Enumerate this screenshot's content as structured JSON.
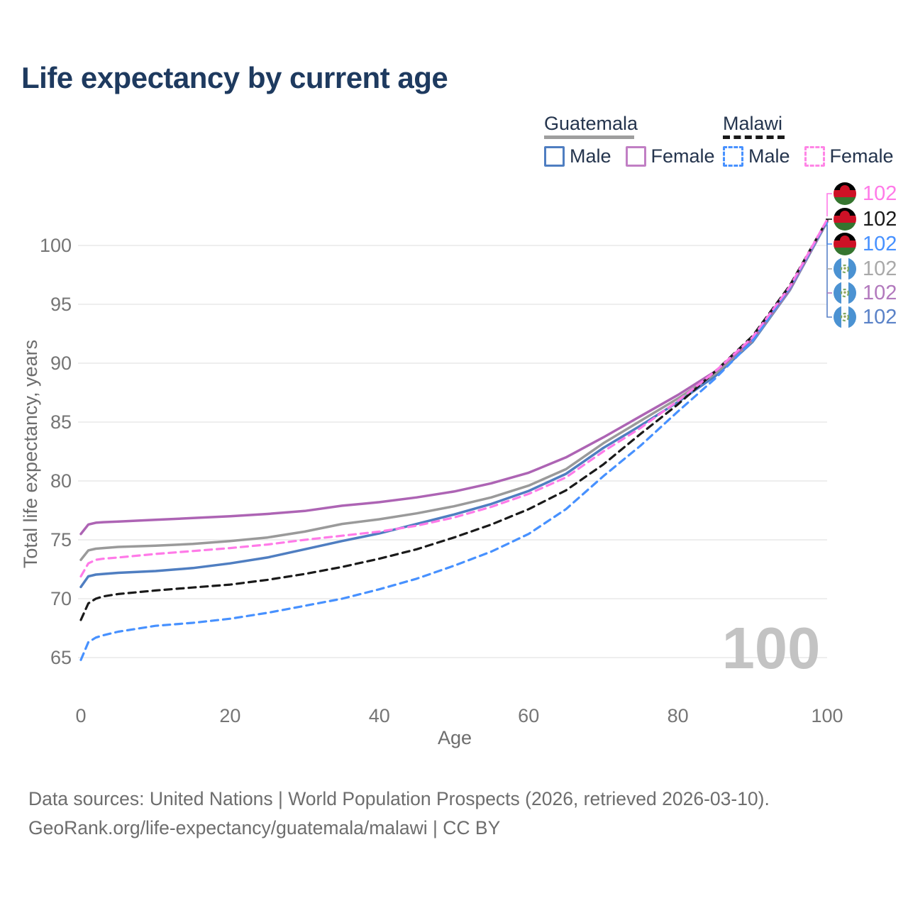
{
  "header": {
    "title": "Life expectancy by current age"
  },
  "legend": {
    "groups": [
      {
        "country": "Guatemala",
        "underline_color": "#9e9e9e",
        "underline_dashed": false,
        "items": [
          {
            "label": "Male",
            "color": "#4f7ec1",
            "dashed": false
          },
          {
            "label": "Female",
            "color": "#c17fc4",
            "dashed": false
          }
        ]
      },
      {
        "country": "Malawi",
        "underline_color": "#1a1a1a",
        "underline_dashed": true,
        "items": [
          {
            "label": "Male",
            "color": "#4791ff",
            "dashed": true
          },
          {
            "label": "Female",
            "color": "#ff85e6",
            "dashed": true
          }
        ]
      }
    ]
  },
  "chart_data": {
    "type": "line",
    "title": "Life expectancy by current age",
    "xlabel": "Age",
    "ylabel": "Total life expectancy, years",
    "xlim": [
      0,
      100
    ],
    "ylim": [
      63,
      103
    ],
    "xticks": [
      0,
      20,
      40,
      60,
      80,
      100
    ],
    "yticks": [
      65,
      70,
      75,
      80,
      85,
      90,
      95,
      100
    ],
    "grid": "horizontal",
    "legend_position": "top-right",
    "ages": [
      0,
      1,
      2,
      3,
      5,
      10,
      15,
      20,
      25,
      30,
      35,
      40,
      45,
      50,
      55,
      60,
      65,
      70,
      75,
      80,
      85,
      90,
      95,
      100
    ],
    "series": [
      {
        "id": "guatemala-male",
        "name": "Guatemala Male",
        "country": "Guatemala",
        "sex": "Male",
        "style": "solid",
        "color": "#4f7ec1",
        "values": [
          71.0,
          71.9,
          72.05,
          72.1,
          72.2,
          72.35,
          72.6,
          73.0,
          73.5,
          74.2,
          74.9,
          75.55,
          76.35,
          77.15,
          78.05,
          79.15,
          80.6,
          82.8,
          84.7,
          86.7,
          88.9,
          91.8,
          96.2,
          102.0
        ]
      },
      {
        "id": "guatemala-both",
        "name": "Guatemala Both sexes",
        "country": "Guatemala",
        "sex": "All",
        "style": "solid",
        "color": "#9a9a9a",
        "values": [
          73.3,
          74.1,
          74.25,
          74.3,
          74.4,
          74.5,
          74.65,
          74.9,
          75.2,
          75.7,
          76.35,
          76.75,
          77.25,
          77.85,
          78.6,
          79.6,
          81.0,
          83.2,
          85.1,
          87.0,
          89.1,
          91.9,
          96.25,
          102.05
        ]
      },
      {
        "id": "guatemala-female",
        "name": "Guatemala Female",
        "country": "Guatemala",
        "sex": "Female",
        "style": "solid",
        "color": "#ad64b4",
        "values": [
          75.5,
          76.3,
          76.45,
          76.5,
          76.55,
          76.7,
          76.85,
          77.0,
          77.2,
          77.45,
          77.9,
          78.2,
          78.6,
          79.1,
          79.8,
          80.7,
          82.0,
          83.7,
          85.5,
          87.3,
          89.3,
          92.0,
          96.3,
          102.1
        ]
      },
      {
        "id": "malawi-male",
        "name": "Malawi Male",
        "country": "Malawi",
        "sex": "Male",
        "style": "dashed",
        "color": "#4791ff",
        "values": [
          64.8,
          66.3,
          66.7,
          66.9,
          67.2,
          67.7,
          67.95,
          68.3,
          68.8,
          69.4,
          70.0,
          70.8,
          71.7,
          72.8,
          74.0,
          75.5,
          77.6,
          80.4,
          83.0,
          85.9,
          88.7,
          91.9,
          96.4,
          102.1
        ]
      },
      {
        "id": "malawi-both",
        "name": "Malawi Both sexes",
        "country": "Malawi",
        "sex": "All",
        "style": "dashed",
        "color": "#1a1a1a",
        "values": [
          68.2,
          69.6,
          70.0,
          70.2,
          70.4,
          70.7,
          70.95,
          71.2,
          71.6,
          72.1,
          72.7,
          73.4,
          74.2,
          75.2,
          76.3,
          77.6,
          79.2,
          81.4,
          84.0,
          86.5,
          89.3,
          92.3,
          96.6,
          102.15
        ]
      },
      {
        "id": "malawi-female",
        "name": "Malawi Female",
        "country": "Malawi",
        "sex": "Female",
        "style": "dashed",
        "color": "#ff7ae8",
        "values": [
          71.9,
          73.0,
          73.3,
          73.4,
          73.5,
          73.8,
          74.05,
          74.3,
          74.6,
          75.0,
          75.35,
          75.7,
          76.2,
          76.9,
          77.8,
          78.9,
          80.3,
          82.5,
          84.5,
          86.8,
          89.3,
          92.2,
          96.5,
          102.2
        ]
      }
    ]
  },
  "end_labels": [
    {
      "flag": "malawi",
      "series": "malawi-female",
      "value": "102",
      "color": "#ff7ae8"
    },
    {
      "flag": "malawi",
      "series": "malawi-both",
      "value": "102",
      "color": "#1a1a1a"
    },
    {
      "flag": "malawi",
      "series": "malawi-male",
      "value": "102",
      "color": "#4791ff"
    },
    {
      "flag": "guatemala",
      "series": "guatemala-both",
      "value": "102",
      "color": "#a9a9a9"
    },
    {
      "flag": "guatemala",
      "series": "guatemala-female",
      "value": "102",
      "color": "#b279bd"
    },
    {
      "flag": "guatemala",
      "series": "guatemala-male",
      "value": "102",
      "color": "#5a82c8"
    }
  ],
  "watermark": {
    "value": "100"
  },
  "footer": {
    "line1": "Data sources: United Nations | World Population Prospects (2026, retrieved 2026-03-10).",
    "line2": "GeoRank.org/life-expectancy/guatemala/malawi | CC BY"
  }
}
